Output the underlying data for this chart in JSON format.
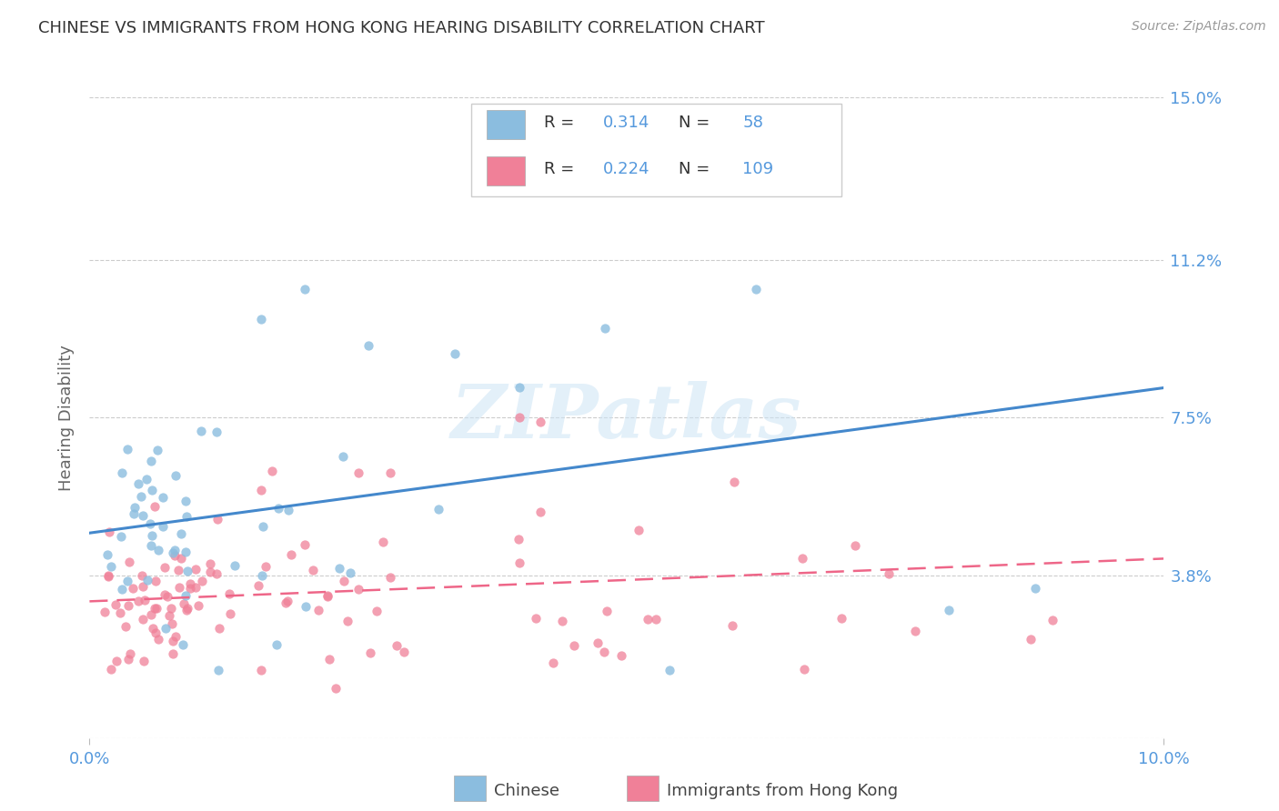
{
  "title": "CHINESE VS IMMIGRANTS FROM HONG KONG HEARING DISABILITY CORRELATION CHART",
  "source": "Source: ZipAtlas.com",
  "ylabel": "Hearing Disability",
  "watermark": "ZIPatlas",
  "xlim": [
    0.0,
    0.1
  ],
  "ylim": [
    0.0,
    0.15
  ],
  "ytick_vals": [
    0.0,
    0.038,
    0.075,
    0.112,
    0.15
  ],
  "ytick_labels": [
    "",
    "3.8%",
    "7.5%",
    "11.2%",
    "15.0%"
  ],
  "xtick_vals": [
    0.0,
    0.1
  ],
  "xtick_labels": [
    "0.0%",
    "10.0%"
  ],
  "chinese_color": "#8bbddf",
  "hk_color": "#f08098",
  "line_blue": "#4488cc",
  "line_pink": "#ee6688",
  "grid_color": "#cccccc",
  "background_color": "#ffffff",
  "title_color": "#333333",
  "axis_label_color": "#666666",
  "tick_label_color": "#5599dd",
  "source_color": "#999999",
  "blue_line_y0": 0.048,
  "blue_line_y1": 0.082,
  "pink_line_y0": 0.032,
  "pink_line_y1": 0.042,
  "legend_R1": "0.314",
  "legend_N1": "58",
  "legend_R2": "0.224",
  "legend_N2": "109",
  "legend_label1": "Chinese",
  "legend_label2": "Immigrants from Hong Kong"
}
